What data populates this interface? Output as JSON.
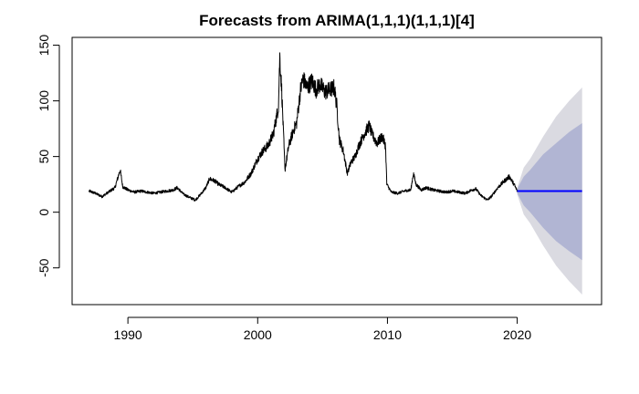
{
  "chart_data": {
    "type": "line",
    "title": "Forecasts from ARIMA(1,1,1)(1,1,1)[4]",
    "xlabel": "",
    "ylabel": "",
    "xlim": [
      1985.7,
      2026.5
    ],
    "ylim": [
      -83,
      157
    ],
    "x_ticks": [
      1990,
      2000,
      2010,
      2020
    ],
    "y_ticks": [
      -50,
      0,
      50,
      100,
      150
    ],
    "grid": false,
    "legend": "none",
    "colors": {
      "history": "#000000",
      "forecast": "#0000ff",
      "band_80": "#b1b5d3",
      "band_95": "#dadae1"
    },
    "history_anchors": [
      [
        1987.0,
        19
      ],
      [
        1987.5,
        17
      ],
      [
        1988.0,
        14
      ],
      [
        1988.5,
        18
      ],
      [
        1989.0,
        22
      ],
      [
        1989.4,
        38
      ],
      [
        1989.6,
        23
      ],
      [
        1990.0,
        20
      ],
      [
        1990.5,
        18
      ],
      [
        1991.0,
        19
      ],
      [
        1991.5,
        18
      ],
      [
        1992.0,
        17
      ],
      [
        1992.5,
        18
      ],
      [
        1993.0,
        19
      ],
      [
        1993.5,
        20
      ],
      [
        1993.8,
        22
      ],
      [
        1994.3,
        16
      ],
      [
        1994.8,
        13
      ],
      [
        1995.2,
        11
      ],
      [
        1995.6,
        16
      ],
      [
        1996.0,
        22
      ],
      [
        1996.3,
        30
      ],
      [
        1996.7,
        28
      ],
      [
        1997.0,
        25
      ],
      [
        1997.5,
        22
      ],
      [
        1998.0,
        18
      ],
      [
        1998.5,
        23
      ],
      [
        1999.0,
        27
      ],
      [
        1999.5,
        35
      ],
      [
        2000.0,
        48
      ],
      [
        2000.4,
        55
      ],
      [
        2000.8,
        60
      ],
      [
        2001.2,
        70
      ],
      [
        2001.6,
        95
      ],
      [
        2001.7,
        140
      ],
      [
        2001.85,
        110
      ],
      [
        2002.1,
        38
      ],
      [
        2002.4,
        60
      ],
      [
        2002.8,
        75
      ],
      [
        2003.0,
        80
      ],
      [
        2003.3,
        110
      ],
      [
        2003.5,
        120
      ],
      [
        2003.8,
        112
      ],
      [
        2004.2,
        118
      ],
      [
        2004.5,
        110
      ],
      [
        2004.8,
        115
      ],
      [
        2005.2,
        108
      ],
      [
        2005.6,
        110
      ],
      [
        2005.9,
        112
      ],
      [
        2006.1,
        95
      ],
      [
        2006.3,
        65
      ],
      [
        2006.6,
        55
      ],
      [
        2006.9,
        35
      ],
      [
        2007.2,
        45
      ],
      [
        2007.5,
        50
      ],
      [
        2007.8,
        60
      ],
      [
        2008.2,
        70
      ],
      [
        2008.6,
        78
      ],
      [
        2008.8,
        70
      ],
      [
        2009.2,
        62
      ],
      [
        2009.6,
        68
      ],
      [
        2009.85,
        60
      ],
      [
        2009.95,
        25
      ],
      [
        2010.3,
        18
      ],
      [
        2010.8,
        17
      ],
      [
        2011.3,
        19
      ],
      [
        2011.8,
        20
      ],
      [
        2012.0,
        35
      ],
      [
        2012.2,
        25
      ],
      [
        2012.6,
        20
      ],
      [
        2013.0,
        22
      ],
      [
        2013.5,
        20
      ],
      [
        2014.0,
        19
      ],
      [
        2014.5,
        18
      ],
      [
        2015.0,
        19
      ],
      [
        2015.5,
        18
      ],
      [
        2016.0,
        17
      ],
      [
        2016.5,
        20
      ],
      [
        2016.8,
        21
      ],
      [
        2017.2,
        15
      ],
      [
        2017.7,
        11
      ],
      [
        2018.0,
        14
      ],
      [
        2018.5,
        22
      ],
      [
        2019.0,
        28
      ],
      [
        2019.4,
        32
      ],
      [
        2019.8,
        24
      ],
      [
        2020.0,
        19
      ]
    ],
    "forecast": {
      "x": [
        2020.0,
        2025.0
      ],
      "mean": [
        19,
        19
      ],
      "band_80": {
        "x": [
          2020.0,
          2020.5,
          2021.0,
          2022.0,
          2023.0,
          2024.0,
          2025.0
        ],
        "lower": [
          17,
          6,
          0,
          -14,
          -26,
          -35,
          -43
        ],
        "upper": [
          21,
          32,
          38,
          52,
          62,
          72,
          80
        ]
      },
      "band_95": {
        "x": [
          2020.0,
          2020.5,
          2021.0,
          2022.0,
          2023.0,
          2024.0,
          2025.0
        ],
        "lower": [
          16,
          -2,
          -10,
          -30,
          -48,
          -62,
          -74
        ],
        "upper": [
          22,
          40,
          48,
          68,
          86,
          100,
          112
        ]
      }
    }
  }
}
